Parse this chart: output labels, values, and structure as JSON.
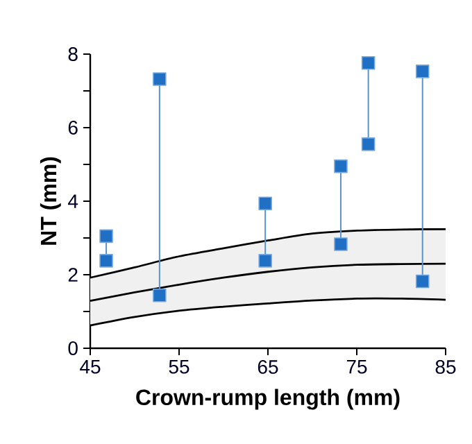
{
  "chart_data": {
    "type": "line",
    "xlabel": "Crown-rump length (mm)",
    "ylabel": "NT (mm)",
    "xlim": [
      45,
      85
    ],
    "xticks": [
      45,
      55,
      65,
      75,
      85
    ],
    "ylim": [
      0,
      8
    ],
    "yticks": [
      0,
      {
        "value": 1,
        "label": null
      },
      2,
      {
        "value": 3,
        "label": null
      },
      4,
      {
        "value": 5,
        "label": null
      },
      6,
      {
        "value": 7,
        "label": null
      },
      8
    ],
    "marker": "square",
    "series": [
      {
        "color": "#000000",
        "marker": "none",
        "x": [
          45,
          50,
          55,
          60,
          65,
          70,
          75,
          80,
          85
        ],
        "values": [
          1.29,
          1.52,
          1.73,
          1.92,
          2.08,
          2.2,
          2.27,
          2.29,
          2.3
        ],
        "lower": [
          0.62,
          0.85,
          1.02,
          1.13,
          1.22,
          1.3,
          1.35,
          1.35,
          1.32
        ],
        "upper": [
          1.92,
          2.2,
          2.5,
          2.72,
          2.93,
          3.12,
          3.2,
          3.23,
          3.24
        ]
      },
      {
        "color": "#000000",
        "marker": "none",
        "x": [
          45,
          50,
          55,
          60,
          65,
          70,
          75,
          80,
          85
        ],
        "values": [
          1.92,
          2.2,
          2.5,
          2.72,
          2.93,
          3.12,
          3.2,
          3.23,
          3.24
        ]
      },
      {
        "color": "#000000",
        "marker": "none",
        "x": [
          45,
          50,
          55,
          60,
          65,
          70,
          75,
          80,
          85
        ],
        "values": [
          0.62,
          0.85,
          1.02,
          1.13,
          1.22,
          1.3,
          1.35,
          1.35,
          1.32
        ]
      },
      {
        "color": "#1f6fc4",
        "x": [
          46.8,
          46.8
        ],
        "values": [
          3.05,
          2.38
        ]
      },
      {
        "color": "#1f6fc4",
        "x": [
          52.8,
          52.8
        ],
        "values": [
          7.32,
          1.44
        ]
      },
      {
        "color": "#1f6fc4",
        "x": [
          64.7,
          64.7
        ],
        "values": [
          3.94,
          2.38
        ]
      },
      {
        "color": "#1f6fc4",
        "x": [
          73.2,
          73.2
        ],
        "values": [
          4.95,
          2.83
        ]
      },
      {
        "color": "#1f6fc4",
        "x": [
          76.3,
          76.3
        ],
        "values": [
          7.76,
          5.55
        ]
      },
      {
        "color": "#1f6fc4",
        "x": [
          82.4,
          82.4
        ],
        "values": [
          7.53,
          1.82
        ]
      }
    ]
  }
}
